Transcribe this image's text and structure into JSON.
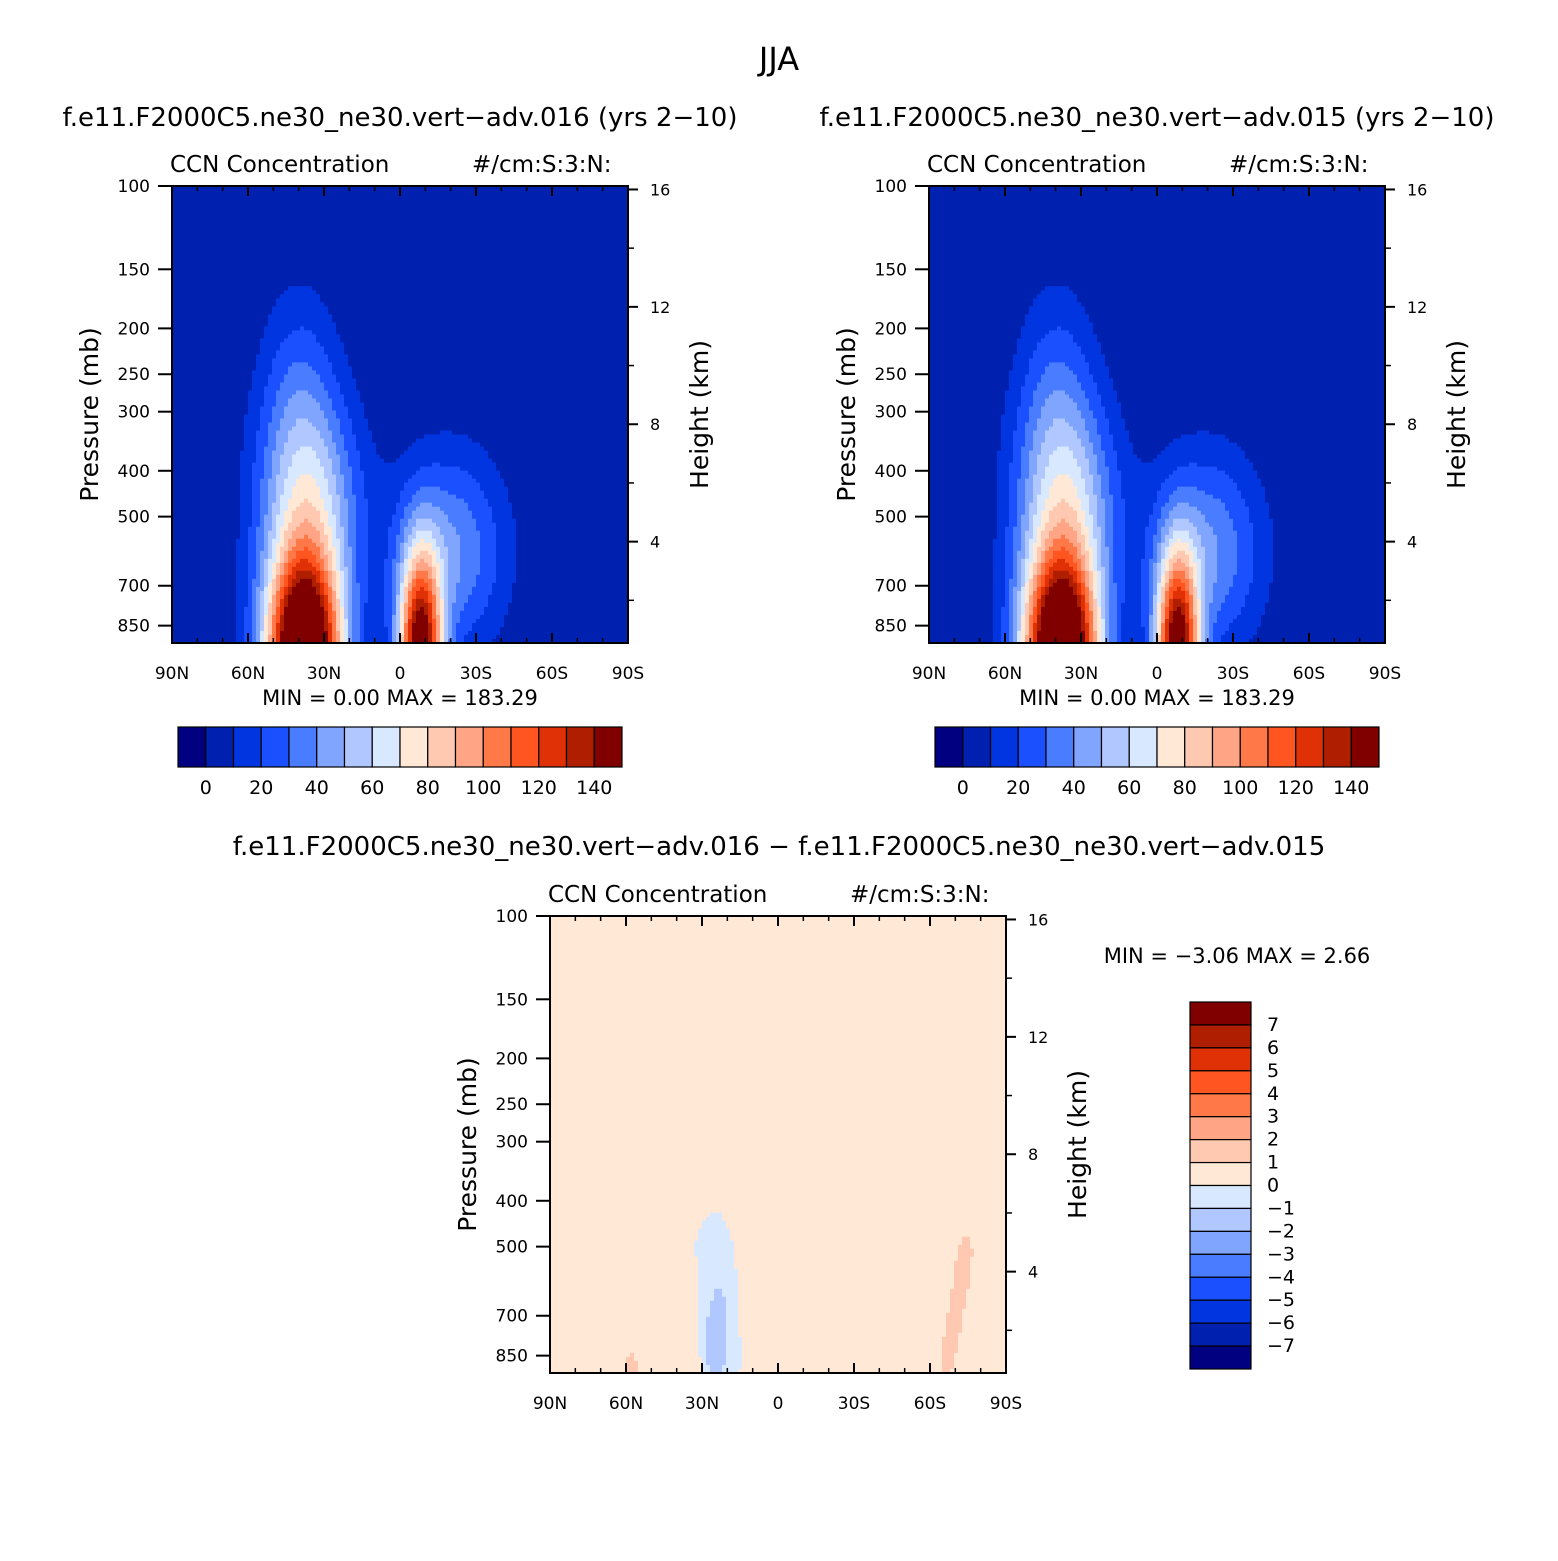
{
  "page_title": "JJA",
  "panel_a_header": "f.e11.F2000C5.ne30_ne30.vert−adv.016 (yrs 2−10)",
  "panel_b_header": "f.e11.F2000C5.ne30_ne30.vert−adv.015 (yrs 2−10)",
  "panel_c_header": "f.e11.F2000C5.ne30_ne30.vert−adv.016 − f.e11.F2000C5.ne30_ne30.vert−adv.015",
  "chart_data": [
    {
      "id": "panel_a",
      "type": "heatmap",
      "variable": "CCN Concentration",
      "units": "#/cm:S:3:N:",
      "xlabel": "",
      "ylabel": "Pressure (mb)",
      "ylabel_right": "Height (km)",
      "x_ticks": [
        "90N",
        "60N",
        "30N",
        "0",
        "30S",
        "60S",
        "90S"
      ],
      "x_tick_values": [
        90,
        60,
        30,
        0,
        -30,
        -60,
        -90
      ],
      "xlim": [
        90,
        -90
      ],
      "y_ticks": [
        100,
        150,
        200,
        250,
        300,
        400,
        500,
        700,
        850
      ],
      "ylim": [
        100,
        925
      ],
      "y_right_ticks": [
        4,
        8,
        12,
        16
      ],
      "min_label": "MIN =",
      "min_value": "0.00",
      "max_label": "MAX =",
      "max_value": "183.29",
      "levels": [
        0,
        10,
        20,
        30,
        40,
        50,
        60,
        70,
        80,
        90,
        100,
        110,
        120,
        130,
        140
      ],
      "colorbar_labels": [
        "0",
        "20",
        "40",
        "60",
        "80",
        "100",
        "120",
        "140"
      ],
      "colors": [
        "#000080",
        "#0020b0",
        "#0035e0",
        "#1a50ff",
        "#4a7cff",
        "#80a5ff",
        "#b0c8ff",
        "#d8e8ff",
        "#ffe8d5",
        "#ffc8b0",
        "#ffa585",
        "#ff7848",
        "#ff5520",
        "#e03005",
        "#b01e00",
        "#800000"
      ]
    },
    {
      "id": "panel_b",
      "type": "heatmap",
      "variable": "CCN Concentration",
      "units": "#/cm:S:3:N:",
      "xlabel": "",
      "ylabel": "Pressure (mb)",
      "ylabel_right": "Height (km)",
      "x_ticks": [
        "90N",
        "60N",
        "30N",
        "0",
        "30S",
        "60S",
        "90S"
      ],
      "x_tick_values": [
        90,
        60,
        30,
        0,
        -30,
        -60,
        -90
      ],
      "xlim": [
        90,
        -90
      ],
      "y_ticks": [
        100,
        150,
        200,
        250,
        300,
        400,
        500,
        700,
        850
      ],
      "ylim": [
        100,
        925
      ],
      "y_right_ticks": [
        4,
        8,
        12,
        16
      ],
      "min_label": "MIN =",
      "min_value": "0.00",
      "max_label": "MAX =",
      "max_value": "183.29",
      "levels": [
        0,
        10,
        20,
        30,
        40,
        50,
        60,
        70,
        80,
        90,
        100,
        110,
        120,
        130,
        140
      ],
      "colorbar_labels": [
        "0",
        "20",
        "40",
        "60",
        "80",
        "100",
        "120",
        "140"
      ],
      "colors": [
        "#000080",
        "#0020b0",
        "#0035e0",
        "#1a50ff",
        "#4a7cff",
        "#80a5ff",
        "#b0c8ff",
        "#d8e8ff",
        "#ffe8d5",
        "#ffc8b0",
        "#ffa585",
        "#ff7848",
        "#ff5520",
        "#e03005",
        "#b01e00",
        "#800000"
      ]
    },
    {
      "id": "panel_c",
      "type": "heatmap",
      "variable": "CCN Concentration",
      "units": "#/cm:S:3:N:",
      "xlabel": "",
      "ylabel": "Pressure (mb)",
      "ylabel_right": "Height (km)",
      "x_ticks": [
        "90N",
        "60N",
        "30N",
        "0",
        "30S",
        "60S",
        "90S"
      ],
      "x_tick_values": [
        90,
        60,
        30,
        0,
        -30,
        -60,
        -90
      ],
      "xlim": [
        90,
        -90
      ],
      "y_ticks": [
        100,
        150,
        200,
        250,
        300,
        400,
        500,
        700,
        850
      ],
      "ylim": [
        100,
        925
      ],
      "y_right_ticks": [
        4,
        8,
        12,
        16
      ],
      "min_label": "MIN =",
      "min_value": "−3.06",
      "max_label": "MAX =",
      "max_value": "2.66",
      "levels": [
        -7,
        -6,
        -5,
        -4,
        -3,
        -2,
        -1,
        0,
        1,
        2,
        3,
        4,
        5,
        6,
        7
      ],
      "colorbar_labels": [
        "7",
        "6",
        "5",
        "4",
        "3",
        "2",
        "1",
        "0",
        "−1",
        "−2",
        "−3",
        "−4",
        "−5",
        "−6",
        "−7"
      ],
      "colors": [
        "#000080",
        "#0020b0",
        "#0035e0",
        "#1a50ff",
        "#4a7cff",
        "#80a5ff",
        "#b0c8ff",
        "#d8e8ff",
        "#ffe8d5",
        "#ffc8b0",
        "#ffa585",
        "#ff7848",
        "#ff5520",
        "#e03005",
        "#b01e00",
        "#800000"
      ]
    }
  ]
}
